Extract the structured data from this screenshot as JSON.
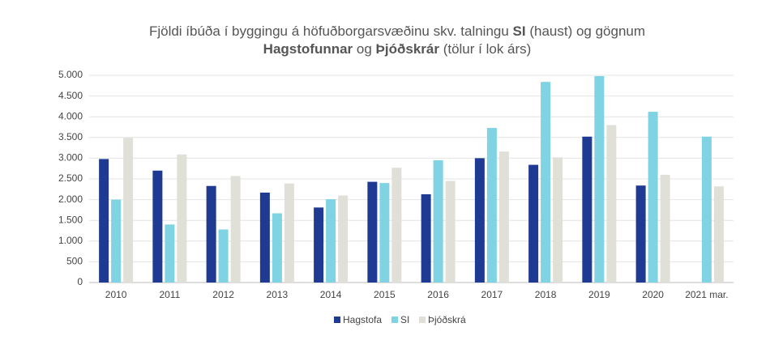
{
  "chart_data": {
    "type": "bar",
    "title": [
      [
        {
          "text": "Fjöldi íbúða í byggingu á höfuðborgarsvæðinu skv. talningu ",
          "bold": false
        },
        {
          "text": "SI",
          "bold": true
        },
        {
          "text": " (haust) og gögnum",
          "bold": false
        }
      ],
      [
        {
          "text": "Hagstofunnar",
          "bold": true
        },
        {
          "text": " og ",
          "bold": false
        },
        {
          "text": "Þjóðskrár",
          "bold": true
        },
        {
          "text": " (tölur í lok árs)",
          "bold": false
        }
      ]
    ],
    "categories": [
      "2010",
      "2011",
      "2012",
      "2013",
      "2014",
      "2015",
      "2016",
      "2017",
      "2018",
      "2019",
      "2020",
      "2021 mar."
    ],
    "series": [
      {
        "name": "Hagstofa",
        "color": "#1f3a93",
        "values": [
          2980,
          2700,
          2330,
          2170,
          1810,
          2430,
          2130,
          3000,
          2840,
          3520,
          2340,
          null
        ]
      },
      {
        "name": "SI",
        "color": "#7fd3e3",
        "values": [
          2000,
          1400,
          1280,
          1670,
          2010,
          2400,
          2950,
          3730,
          4840,
          4980,
          4120,
          3520
        ]
      },
      {
        "name": "Þjóðskrá",
        "color": "#e0e0d8",
        "values": [
          3490,
          3090,
          2570,
          2390,
          2100,
          2770,
          2450,
          3160,
          3020,
          3800,
          2600,
          2320
        ]
      }
    ],
    "ylim": [
      0,
      5000
    ],
    "yticks": [
      0,
      {
        "value": 500,
        "label": "500"
      },
      {
        "value": 1000,
        "label": "1.000"
      },
      {
        "value": 1500,
        "label": "1.500"
      },
      {
        "value": 2000,
        "label": "2.000"
      },
      {
        "value": 2500,
        "label": "2.500"
      },
      {
        "value": 3000,
        "label": "3.000"
      },
      {
        "value": 3500,
        "label": "3.500"
      },
      {
        "value": 4000,
        "label": "4.000"
      },
      {
        "value": 4500,
        "label": "4.500"
      },
      {
        "value": 5000,
        "label": "5.000"
      }
    ],
    "grid": true,
    "legend": "bottom"
  }
}
